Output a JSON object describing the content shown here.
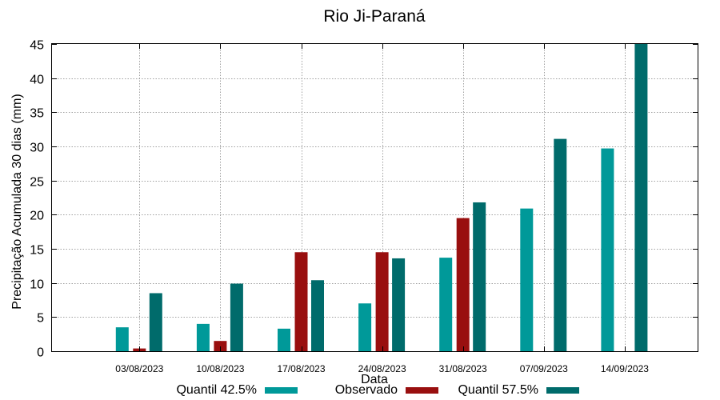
{
  "chart_data": {
    "type": "bar",
    "title": "Rio Ji-Paraná",
    "xlabel": "Data",
    "ylabel": "Precipitação Acumulada 30 dias (mm)",
    "ylim": [
      0,
      45
    ],
    "yticks": [
      0,
      5,
      10,
      15,
      20,
      25,
      30,
      35,
      40,
      45
    ],
    "grid": true,
    "legend_position": "bottom",
    "categories": [
      "03/08/2023",
      "10/08/2023",
      "17/08/2023",
      "24/08/2023",
      "31/08/2023",
      "07/09/2023",
      "14/09/2023"
    ],
    "series": [
      {
        "name": "Quantil 42.5%",
        "color": "#009999",
        "values": [
          3.5,
          4.0,
          3.3,
          7.0,
          13.7,
          20.9,
          29.7
        ]
      },
      {
        "name": "Observado",
        "color": "#990f0f",
        "values": [
          0.4,
          1.5,
          14.5,
          14.5,
          19.5,
          null,
          null
        ]
      },
      {
        "name": "Quantil 57.5%",
        "color": "#006b6b",
        "values": [
          8.5,
          9.9,
          10.4,
          13.6,
          21.8,
          31.1,
          45.0
        ]
      }
    ]
  }
}
